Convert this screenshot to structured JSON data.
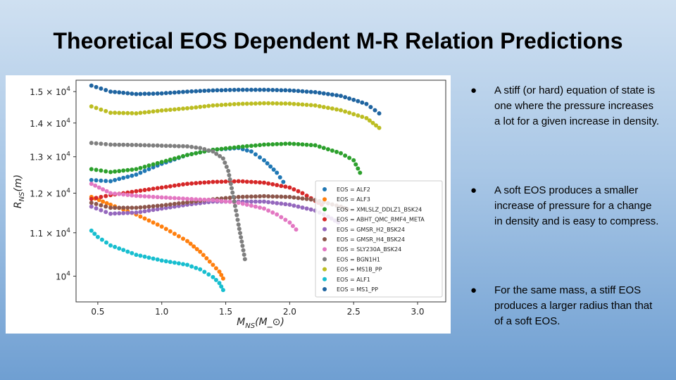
{
  "slide": {
    "title": "Theoretical EOS Dependent M-R Relation Predictions"
  },
  "bullets": [
    {
      "marker": "●",
      "text": "A stiff (or hard) equation of state is one where the pressure increases a lot for a given increase in density."
    },
    {
      "marker": "●",
      "text": "A soft EOS produces a smaller increase of pressure for a change in density and is easy to compress."
    },
    {
      "marker": "●",
      "text": "For the same mass, a stiff EOS produces a larger radius than that of a soft EOS."
    }
  ],
  "chart_data": {
    "type": "scatter",
    "title": "",
    "xlabel": "M_NS(M_⊙)",
    "ylabel": "R_NS(m)",
    "xlim": [
      0.33,
      3.22
    ],
    "ylim": [
      9450,
      15380
    ],
    "y_scale": "log",
    "grid": false,
    "legend_position": "lower-right",
    "x_ticks": [
      0.5,
      1.0,
      1.5,
      2.0,
      2.5,
      3.0
    ],
    "x_tick_labels": [
      "0.5",
      "1.0",
      "1.5",
      "2.0",
      "2.5",
      "3.0"
    ],
    "y_ticks": [
      {
        "value": 15000,
        "mantissa": "1.5",
        "exp": "4"
      },
      {
        "value": 14000,
        "mantissa": "1.4",
        "exp": "4"
      },
      {
        "value": 13000,
        "mantissa": "1.3",
        "exp": "4"
      },
      {
        "value": 12000,
        "mantissa": "1.2",
        "exp": "4"
      },
      {
        "value": 11000,
        "mantissa": "1.1",
        "exp": "4"
      },
      {
        "value": 10000,
        "mantissa": "",
        "exp": "4"
      }
    ],
    "series": [
      {
        "name": "EOS = ALF2",
        "color": "#1f77b4",
        "points": [
          [
            0.45,
            12350
          ],
          [
            0.6,
            12320
          ],
          [
            0.8,
            12500
          ],
          [
            1.0,
            12800
          ],
          [
            1.2,
            13050
          ],
          [
            1.4,
            13200
          ],
          [
            1.6,
            13250
          ],
          [
            1.7,
            13150
          ],
          [
            1.8,
            12900
          ],
          [
            1.9,
            12550
          ],
          [
            1.95,
            12300
          ]
        ]
      },
      {
        "name": "EOS = ALF3",
        "color": "#ff7f0e",
        "points": [
          [
            0.45,
            11900
          ],
          [
            0.6,
            11700
          ],
          [
            0.8,
            11450
          ],
          [
            1.0,
            11150
          ],
          [
            1.2,
            10800
          ],
          [
            1.3,
            10550
          ],
          [
            1.4,
            10250
          ],
          [
            1.45,
            10100
          ],
          [
            1.48,
            9950
          ]
        ]
      },
      {
        "name": "EOS = XMLSLZ_DDLZ1_BSK24",
        "color": "#2ca02c",
        "points": [
          [
            0.45,
            12650
          ],
          [
            0.6,
            12570
          ],
          [
            0.8,
            12650
          ],
          [
            1.0,
            12850
          ],
          [
            1.2,
            13050
          ],
          [
            1.4,
            13200
          ],
          [
            1.6,
            13280
          ],
          [
            1.8,
            13350
          ],
          [
            2.0,
            13380
          ],
          [
            2.2,
            13330
          ],
          [
            2.4,
            13100
          ],
          [
            2.5,
            12900
          ],
          [
            2.55,
            12550
          ]
        ]
      },
      {
        "name": "EOS = ABHT_QMC_RMF4_META",
        "color": "#d62728",
        "points": [
          [
            0.45,
            11850
          ],
          [
            0.6,
            11950
          ],
          [
            0.8,
            12050
          ],
          [
            1.0,
            12150
          ],
          [
            1.2,
            12250
          ],
          [
            1.4,
            12300
          ],
          [
            1.6,
            12320
          ],
          [
            1.8,
            12280
          ],
          [
            2.0,
            12150
          ],
          [
            2.1,
            12000
          ],
          [
            2.2,
            11800
          ],
          [
            2.25,
            11700
          ]
        ]
      },
      {
        "name": "EOS = GMSR_H2_BSK24",
        "color": "#9467bd",
        "points": [
          [
            0.45,
            11650
          ],
          [
            0.6,
            11470
          ],
          [
            0.8,
            11500
          ],
          [
            1.0,
            11600
          ],
          [
            1.2,
            11700
          ],
          [
            1.4,
            11780
          ],
          [
            1.6,
            11780
          ],
          [
            1.8,
            11780
          ],
          [
            2.0,
            11700
          ],
          [
            2.2,
            11550
          ],
          [
            2.3,
            11400
          ],
          [
            2.38,
            11250
          ]
        ]
      },
      {
        "name": "EOS = GMSR_H4_BSK24",
        "color": "#8c564b",
        "points": [
          [
            0.45,
            11750
          ],
          [
            0.6,
            11620
          ],
          [
            0.8,
            11620
          ],
          [
            1.0,
            11680
          ],
          [
            1.2,
            11760
          ],
          [
            1.4,
            11840
          ],
          [
            1.6,
            11900
          ],
          [
            1.8,
            11920
          ],
          [
            2.0,
            11900
          ],
          [
            2.2,
            11820
          ],
          [
            2.4,
            11650
          ],
          [
            2.45,
            11580
          ]
        ]
      },
      {
        "name": "EOS = SLY230A_BSK24",
        "color": "#e377c2",
        "points": [
          [
            0.45,
            12250
          ],
          [
            0.6,
            12000
          ],
          [
            0.8,
            11930
          ],
          [
            1.0,
            11890
          ],
          [
            1.2,
            11850
          ],
          [
            1.4,
            11820
          ],
          [
            1.6,
            11750
          ],
          [
            1.8,
            11600
          ],
          [
            1.9,
            11450
          ],
          [
            2.0,
            11250
          ],
          [
            2.05,
            11080
          ]
        ]
      },
      {
        "name": "EOS = BGN1H1",
        "color": "#7f7f7f",
        "points": [
          [
            0.45,
            13400
          ],
          [
            0.6,
            13350
          ],
          [
            0.8,
            13340
          ],
          [
            1.0,
            13320
          ],
          [
            1.2,
            13300
          ],
          [
            1.3,
            13250
          ],
          [
            1.4,
            13150
          ],
          [
            1.48,
            12950
          ],
          [
            1.52,
            12600
          ],
          [
            1.6,
            11200
          ],
          [
            1.65,
            10380
          ]
        ]
      },
      {
        "name": "EOS = MS1B_PP",
        "color": "#bcbd22",
        "points": [
          [
            0.45,
            14520
          ],
          [
            0.6,
            14320
          ],
          [
            0.8,
            14300
          ],
          [
            1.0,
            14390
          ],
          [
            1.2,
            14460
          ],
          [
            1.4,
            14550
          ],
          [
            1.6,
            14600
          ],
          [
            1.8,
            14620
          ],
          [
            2.0,
            14610
          ],
          [
            2.2,
            14550
          ],
          [
            2.4,
            14400
          ],
          [
            2.6,
            14150
          ],
          [
            2.7,
            13850
          ]
        ]
      },
      {
        "name": "EOS = ALF1",
        "color": "#17becf",
        "points": [
          [
            0.45,
            11050
          ],
          [
            0.5,
            10900
          ],
          [
            0.6,
            10700
          ],
          [
            0.8,
            10480
          ],
          [
            1.0,
            10350
          ],
          [
            1.2,
            10250
          ],
          [
            1.3,
            10150
          ],
          [
            1.4,
            9980
          ],
          [
            1.45,
            9850
          ],
          [
            1.48,
            9700
          ]
        ]
      },
      {
        "name": "EOS = MS1_PP",
        "color": "#1f64a0",
        "points": [
          [
            0.45,
            15200
          ],
          [
            0.6,
            15000
          ],
          [
            0.8,
            14920
          ],
          [
            1.0,
            14940
          ],
          [
            1.2,
            15000
          ],
          [
            1.4,
            15040
          ],
          [
            1.6,
            15060
          ],
          [
            1.8,
            15060
          ],
          [
            2.0,
            15040
          ],
          [
            2.2,
            14980
          ],
          [
            2.4,
            14860
          ],
          [
            2.6,
            14600
          ],
          [
            2.7,
            14300
          ]
        ]
      }
    ]
  }
}
